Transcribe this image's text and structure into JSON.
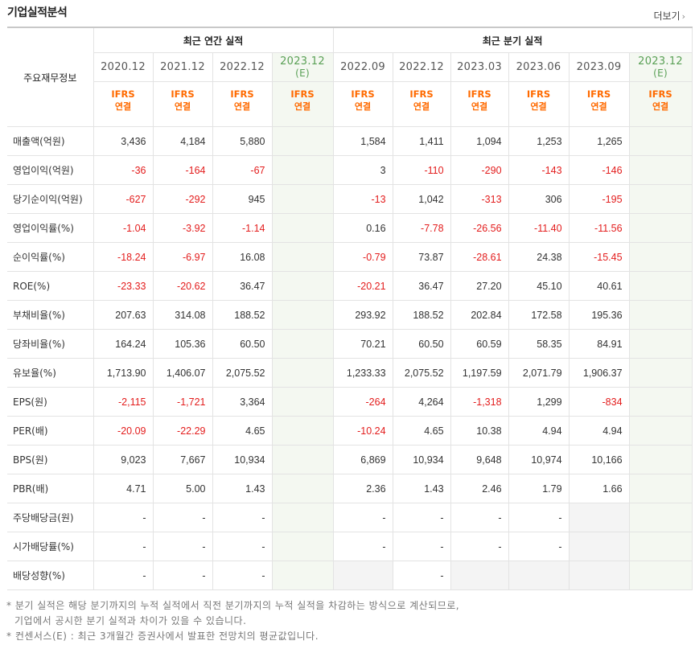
{
  "title": "기업실적분석",
  "more_label": "더보기",
  "more_icon": "chevron-right-icon",
  "row_label_header": "주요재무정보",
  "group_annual": "최근 연간 실적",
  "group_quarter": "최근 분기 실적",
  "columns": [
    {
      "period": "2020.12",
      "est": false,
      "std": "IFRS",
      "basis": "연결"
    },
    {
      "period": "2021.12",
      "est": false,
      "std": "IFRS",
      "basis": "연결"
    },
    {
      "period": "2022.12",
      "est": false,
      "std": "IFRS",
      "basis": "연결"
    },
    {
      "period": "2023.12",
      "est_mark": "(E)",
      "est": true,
      "std": "IFRS",
      "basis": "연결"
    },
    {
      "period": "2022.09",
      "est": false,
      "std": "IFRS",
      "basis": "연결"
    },
    {
      "period": "2022.12",
      "est": false,
      "std": "IFRS",
      "basis": "연결"
    },
    {
      "period": "2023.03",
      "est": false,
      "std": "IFRS",
      "basis": "연결"
    },
    {
      "period": "2023.06",
      "est": false,
      "std": "IFRS",
      "basis": "연결"
    },
    {
      "period": "2023.09",
      "est": false,
      "std": "IFRS",
      "basis": "연결"
    },
    {
      "period": "2023.12",
      "est_mark": "(E)",
      "est": true,
      "std": "IFRS",
      "basis": "연결"
    }
  ],
  "rows": [
    {
      "label": "매출액(억원)",
      "values": [
        "3,436",
        "4,184",
        "5,880",
        "",
        "1,584",
        "1,411",
        "1,094",
        "1,253",
        "1,265",
        ""
      ]
    },
    {
      "label": "영업이익(억원)",
      "values": [
        "-36",
        "-164",
        "-67",
        "",
        "3",
        "-110",
        "-290",
        "-143",
        "-146",
        ""
      ]
    },
    {
      "label": "당기순이익(억원)",
      "values": [
        "-627",
        "-292",
        "945",
        "",
        "-13",
        "1,042",
        "-313",
        "306",
        "-195",
        ""
      ]
    },
    {
      "label": "영업이익률(%)",
      "values": [
        "-1.04",
        "-3.92",
        "-1.14",
        "",
        "0.16",
        "-7.78",
        "-26.56",
        "-11.40",
        "-11.56",
        ""
      ]
    },
    {
      "label": "순이익률(%)",
      "values": [
        "-18.24",
        "-6.97",
        "16.08",
        "",
        "-0.79",
        "73.87",
        "-28.61",
        "24.38",
        "-15.45",
        ""
      ]
    },
    {
      "label": "ROE(%)",
      "values": [
        "-23.33",
        "-20.62",
        "36.47",
        "",
        "-20.21",
        "36.47",
        "27.20",
        "45.10",
        "40.61",
        ""
      ]
    },
    {
      "label": "부채비율(%)",
      "values": [
        "207.63",
        "314.08",
        "188.52",
        "",
        "293.92",
        "188.52",
        "202.84",
        "172.58",
        "195.36",
        ""
      ]
    },
    {
      "label": "당좌비율(%)",
      "values": [
        "164.24",
        "105.36",
        "60.50",
        "",
        "70.21",
        "60.50",
        "60.59",
        "58.35",
        "84.91",
        ""
      ]
    },
    {
      "label": "유보율(%)",
      "values": [
        "1,713.90",
        "1,406.07",
        "2,075.52",
        "",
        "1,233.33",
        "2,075.52",
        "1,197.59",
        "2,071.79",
        "1,906.37",
        ""
      ]
    },
    {
      "label": "EPS(원)",
      "values": [
        "-2,115",
        "-1,721",
        "3,364",
        "",
        "-264",
        "4,264",
        "-1,318",
        "1,299",
        "-834",
        ""
      ]
    },
    {
      "label": "PER(배)",
      "values": [
        "-20.09",
        "-22.29",
        "4.65",
        "",
        "-10.24",
        "4.65",
        "10.38",
        "4.94",
        "4.94",
        ""
      ]
    },
    {
      "label": "BPS(원)",
      "values": [
        "9,023",
        "7,667",
        "10,934",
        "",
        "6,869",
        "10,934",
        "9,648",
        "10,974",
        "10,166",
        ""
      ]
    },
    {
      "label": "PBR(배)",
      "values": [
        "4.71",
        "5.00",
        "1.43",
        "",
        "2.36",
        "1.43",
        "2.46",
        "1.79",
        "1.66",
        ""
      ]
    },
    {
      "label": "주당배당금(원)",
      "values": [
        "-",
        "-",
        "-",
        "",
        "-",
        "-",
        "-",
        "-",
        "",
        ""
      ]
    },
    {
      "label": "시가배당률(%)",
      "values": [
        "-",
        "-",
        "-",
        "",
        "-",
        "-",
        "-",
        "-",
        "",
        ""
      ]
    },
    {
      "label": "배당성향(%)",
      "values": [
        "-",
        "-",
        "-",
        "",
        "",
        "-",
        "",
        "",
        "",
        ""
      ]
    }
  ],
  "notes": [
    "* 분기 실적은 해당 분기까지의 누적 실적에서 직전 분기까지의 누적 실적을 차감하는 방식으로 계산되므로,",
    "기업에서 공시한 분기 실적과 차이가 있을 수 있습니다.",
    "* 컨센서스(E) : 최근 3개월간 증권사에서 발표한 전망치의 평균값입니다."
  ],
  "colors": {
    "negative": "#e31c1c",
    "estimate_bg": "#f4f8f1",
    "estimate_text": "#5aa056",
    "ifrs_text": "#ff6a00",
    "no_data_bg": "#f4f4f4"
  }
}
